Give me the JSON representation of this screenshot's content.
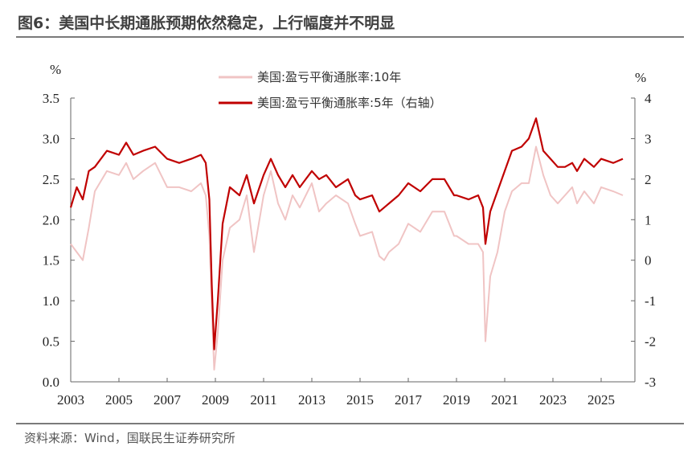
{
  "header": {
    "title": "图6：美国中长期通胀预期依然稳定，上行幅度并不明显"
  },
  "footer": {
    "source": "资料来源：Wind，国联民生证券研究所"
  },
  "chart_data": {
    "type": "line",
    "left_unit": "%",
    "right_unit": "%",
    "x_ticks": [
      "2003",
      "2005",
      "2007",
      "2009",
      "2011",
      "2013",
      "2015",
      "2017",
      "2019",
      "2021",
      "2023",
      "2025"
    ],
    "ylim_left": [
      0.0,
      3.5
    ],
    "ylim_right": [
      -3,
      4
    ],
    "yticks_left": [
      "0.0",
      "0.5",
      "1.0",
      "1.5",
      "2.0",
      "2.5",
      "3.0",
      "3.5"
    ],
    "yticks_right": [
      "-3",
      "-2",
      "-1",
      "0",
      "1",
      "2",
      "3",
      "4"
    ],
    "colors": {
      "series_10y": "#f0c4c4",
      "series_5y": "#c00000"
    },
    "series": [
      {
        "name": "美国:盈亏平衡通胀率:10年",
        "axis": "left",
        "x": [
          2003.0,
          2003.25,
          2003.5,
          2003.75,
          2004.0,
          2004.5,
          2005.0,
          2005.3,
          2005.6,
          2006.0,
          2006.5,
          2007.0,
          2007.5,
          2008.0,
          2008.4,
          2008.6,
          2008.75,
          2008.85,
          2008.95,
          2009.1,
          2009.3,
          2009.6,
          2010.0,
          2010.3,
          2010.6,
          2011.0,
          2011.3,
          2011.6,
          2011.9,
          2012.2,
          2012.5,
          2013.0,
          2013.3,
          2013.6,
          2014.0,
          2014.5,
          2014.8,
          2015.0,
          2015.5,
          2015.8,
          2016.0,
          2016.2,
          2016.6,
          2017.0,
          2017.5,
          2018.0,
          2018.5,
          2018.9,
          2019.0,
          2019.5,
          2019.9,
          2020.1,
          2020.2,
          2020.4,
          2020.7,
          2021.0,
          2021.3,
          2021.7,
          2022.0,
          2022.3,
          2022.6,
          2022.9,
          2023.2,
          2023.5,
          2023.8,
          2024.0,
          2024.3,
          2024.7,
          2025.0,
          2025.5,
          2025.9
        ],
        "y": [
          1.7,
          1.6,
          1.5,
          1.9,
          2.35,
          2.6,
          2.55,
          2.7,
          2.5,
          2.6,
          2.7,
          2.4,
          2.4,
          2.35,
          2.45,
          2.3,
          1.8,
          0.9,
          0.15,
          0.6,
          1.5,
          1.9,
          2.0,
          2.3,
          1.6,
          2.3,
          2.6,
          2.2,
          2.0,
          2.3,
          2.15,
          2.45,
          2.1,
          2.2,
          2.3,
          2.2,
          1.95,
          1.8,
          1.85,
          1.55,
          1.5,
          1.6,
          1.7,
          1.95,
          1.85,
          2.1,
          2.1,
          1.8,
          1.8,
          1.7,
          1.7,
          1.6,
          0.5,
          1.3,
          1.6,
          2.1,
          2.35,
          2.45,
          2.45,
          2.9,
          2.55,
          2.3,
          2.2,
          2.3,
          2.4,
          2.2,
          2.35,
          2.2,
          2.4,
          2.35,
          2.3
        ]
      },
      {
        "name": "美国:盈亏平衡通胀率:5年（右轴）",
        "axis": "right",
        "x": [
          2003.0,
          2003.25,
          2003.5,
          2003.75,
          2004.0,
          2004.5,
          2005.0,
          2005.3,
          2005.6,
          2006.0,
          2006.5,
          2007.0,
          2007.5,
          2008.0,
          2008.4,
          2008.6,
          2008.75,
          2008.85,
          2008.95,
          2009.1,
          2009.3,
          2009.6,
          2010.0,
          2010.3,
          2010.6,
          2011.0,
          2011.3,
          2011.6,
          2011.9,
          2012.2,
          2012.5,
          2013.0,
          2013.3,
          2013.6,
          2014.0,
          2014.5,
          2014.8,
          2015.0,
          2015.5,
          2015.8,
          2016.0,
          2016.2,
          2016.6,
          2017.0,
          2017.5,
          2018.0,
          2018.5,
          2018.9,
          2019.0,
          2019.5,
          2019.9,
          2020.1,
          2020.2,
          2020.4,
          2020.7,
          2021.0,
          2021.3,
          2021.7,
          2022.0,
          2022.3,
          2022.6,
          2022.9,
          2023.2,
          2023.5,
          2023.8,
          2024.0,
          2024.3,
          2024.7,
          2025.0,
          2025.5,
          2025.9
        ],
        "y": [
          1.3,
          1.8,
          1.5,
          2.2,
          2.3,
          2.7,
          2.6,
          2.9,
          2.6,
          2.7,
          2.8,
          2.5,
          2.4,
          2.5,
          2.6,
          2.4,
          1.5,
          -0.6,
          -2.2,
          -1.0,
          0.9,
          1.8,
          1.6,
          2.1,
          1.4,
          2.1,
          2.5,
          2.1,
          1.8,
          2.1,
          1.8,
          2.2,
          2.0,
          2.1,
          1.8,
          2.0,
          1.6,
          1.5,
          1.6,
          1.2,
          1.3,
          1.4,
          1.6,
          1.9,
          1.7,
          2.0,
          2.0,
          1.6,
          1.6,
          1.5,
          1.6,
          1.3,
          0.4,
          1.2,
          1.7,
          2.2,
          2.7,
          2.8,
          3.0,
          3.5,
          2.7,
          2.5,
          2.3,
          2.3,
          2.4,
          2.2,
          2.5,
          2.3,
          2.5,
          2.4,
          2.5
        ]
      }
    ]
  }
}
